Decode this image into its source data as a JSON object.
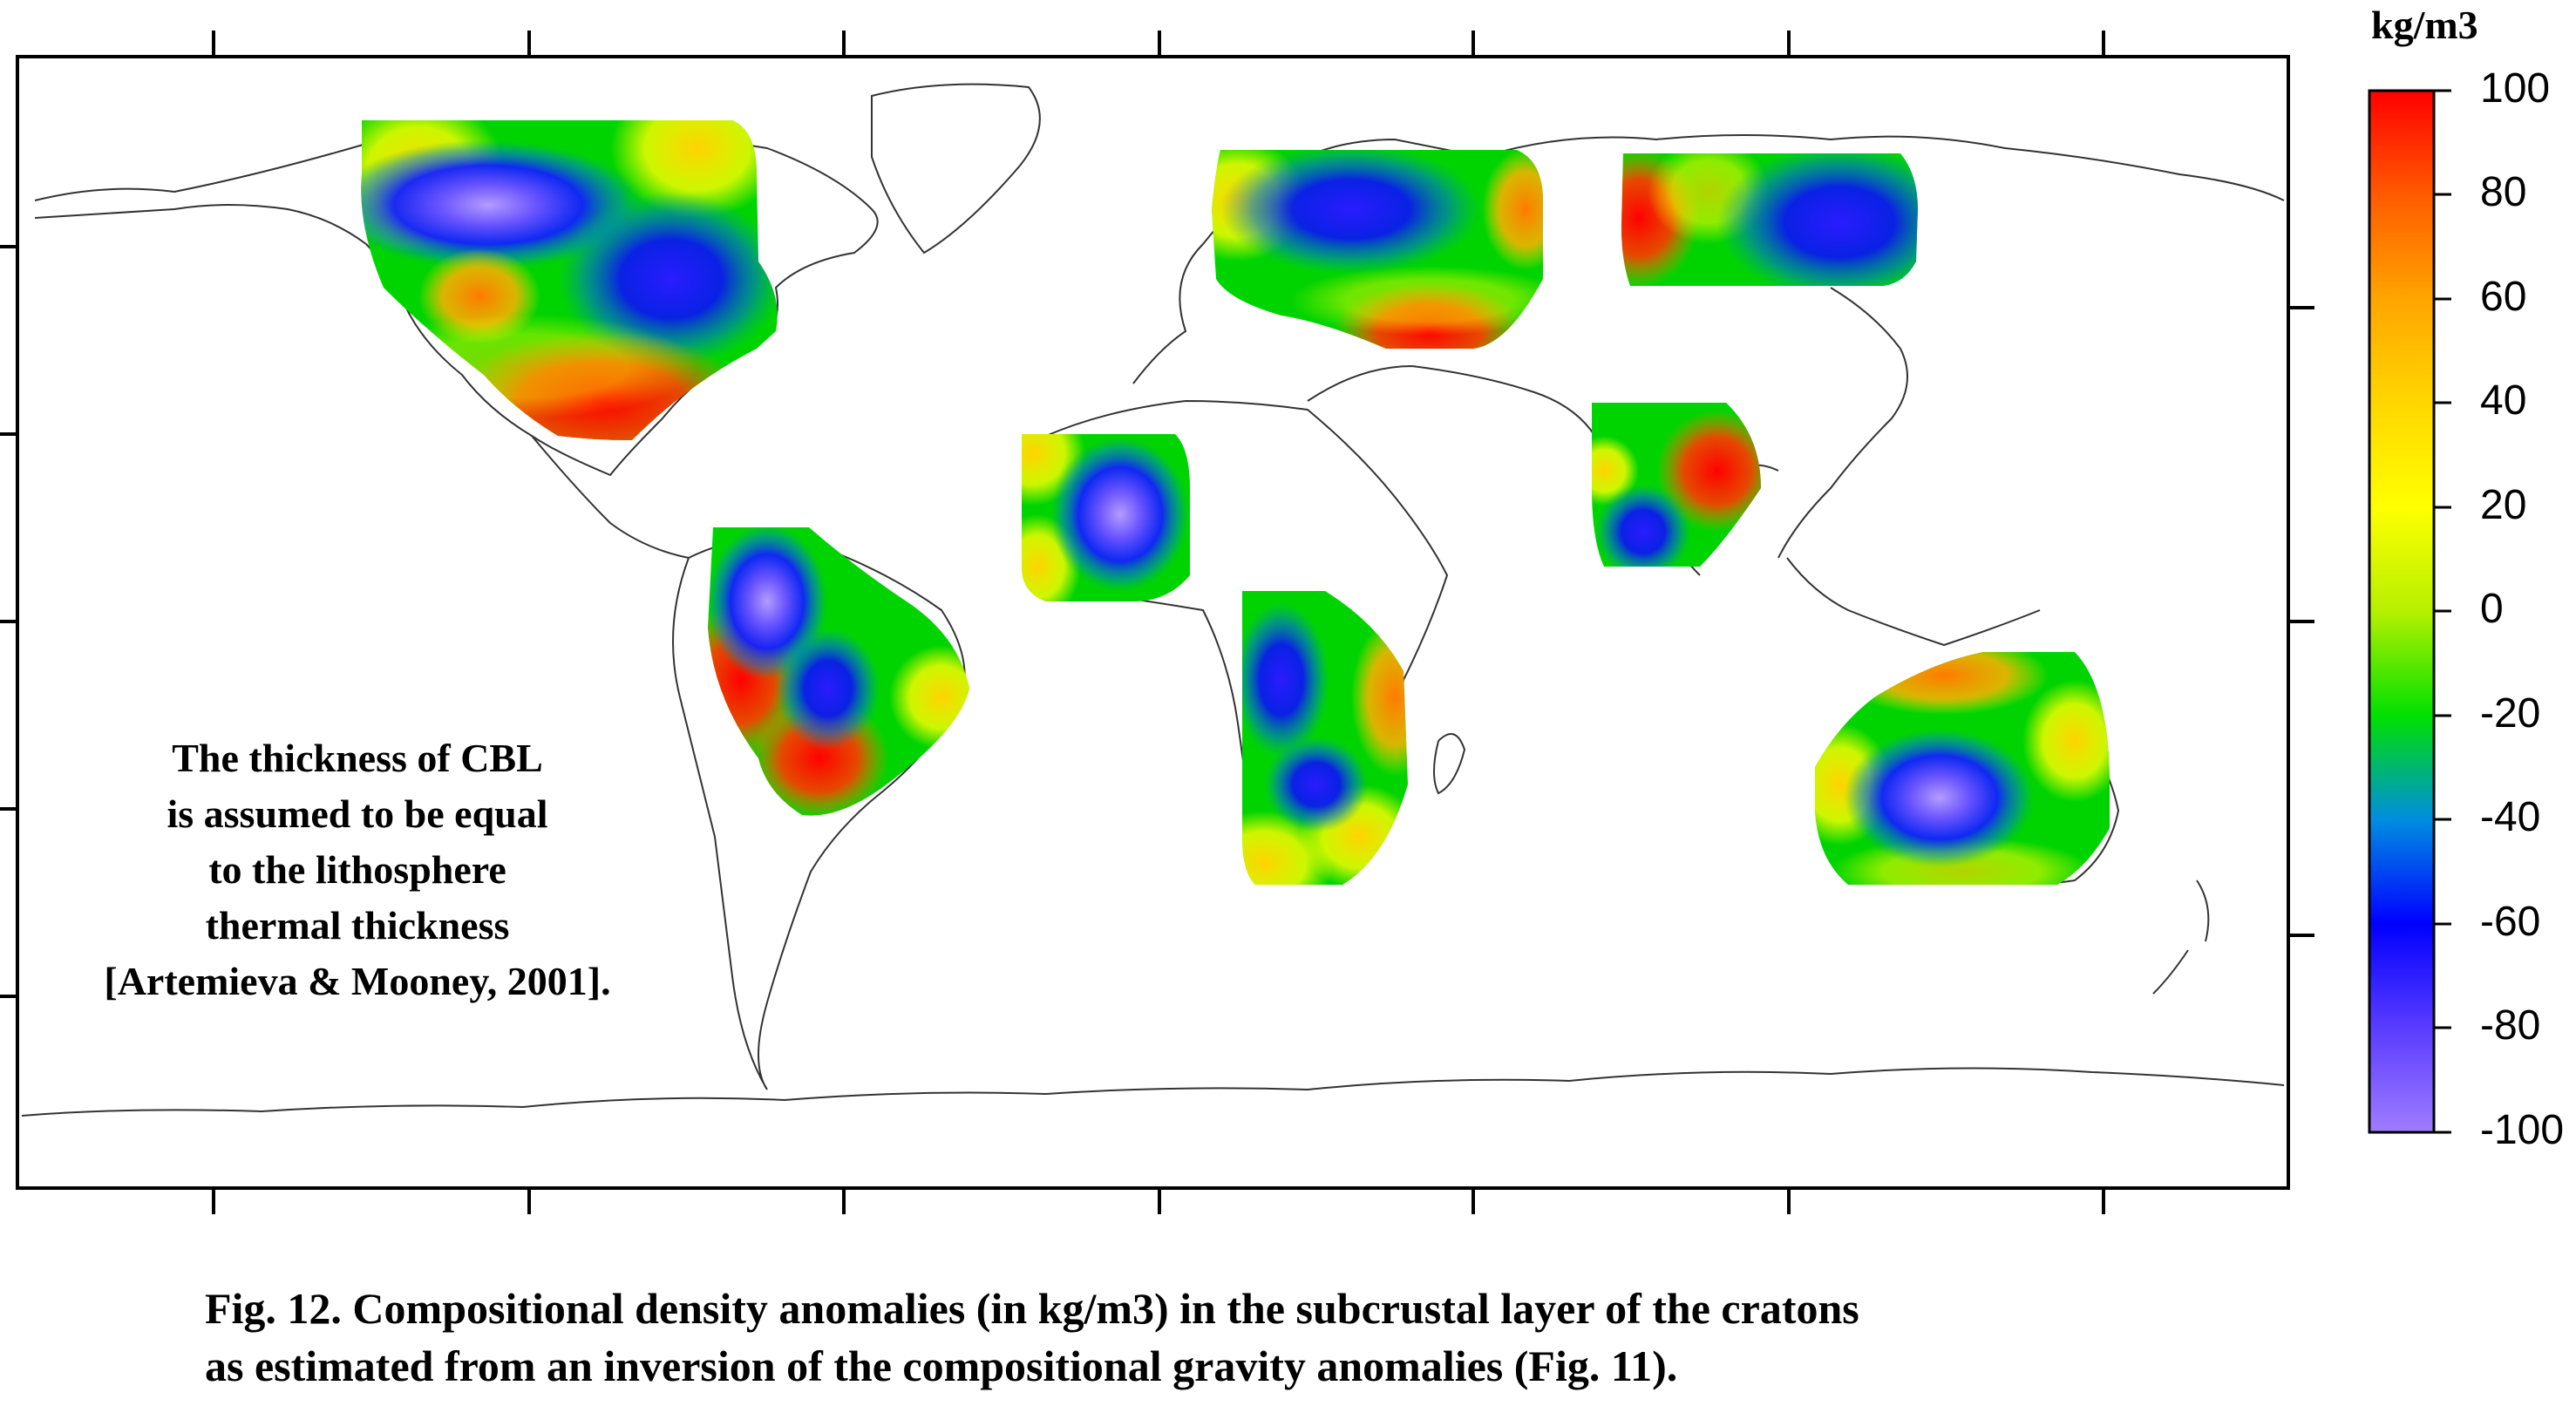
{
  "colorbar": {
    "unit": "kg/m3",
    "ticks": [
      "100",
      "80",
      "60",
      "40",
      "20",
      "0",
      "-20",
      "-40",
      "-60",
      "-80",
      "-100"
    ],
    "stops": [
      "#ff0000",
      "#ff5a00",
      "#ffa500",
      "#ffd700",
      "#ffff00",
      "#b6f000",
      "#00e000",
      "#008de0",
      "#0000ff",
      "#5a3cff",
      "#9f7dff"
    ]
  },
  "annotation": {
    "lines": [
      "The thickness of CBL",
      "is assumed to be equal",
      "to the lithosphere",
      "thermal thickness",
      "[Artemieva & Mooney, 2001]."
    ]
  },
  "caption": {
    "line1": "Fig. 12. Compositional density anomalies (in kg/m3) in the subcrustal layer of the cratons",
    "line2": "as estimated from an inversion of the compositional gravity anomalies (Fig. 11)."
  },
  "map_data": {
    "projection": "equirectangular",
    "features": [
      {
        "name": "north-america-craton",
        "lon": [
          -135,
          -68
        ],
        "lat": [
          25,
          78
        ]
      },
      {
        "name": "south-america-craton",
        "lon": [
          -72,
          -36
        ],
        "lat": [
          -30,
          10
        ]
      },
      {
        "name": "west-africa-craton",
        "lon": [
          -17,
          7
        ],
        "lat": [
          5,
          25
        ]
      },
      {
        "name": "south-africa-craton",
        "lon": [
          12,
          42
        ],
        "lat": [
          -36,
          14
        ]
      },
      {
        "name": "baltic-east-europe-craton",
        "lon": [
          6,
          60
        ],
        "lat": [
          43,
          70
        ]
      },
      {
        "name": "siberian-craton",
        "lon": [
          88,
          140
        ],
        "lat": [
          55,
          72
        ]
      },
      {
        "name": "india-craton",
        "lon": [
          72,
          92
        ],
        "lat": [
          8,
          34
        ]
      },
      {
        "name": "australia-craton",
        "lon": [
          114,
          150
        ],
        "lat": [
          -38,
          -10
        ]
      }
    ]
  }
}
